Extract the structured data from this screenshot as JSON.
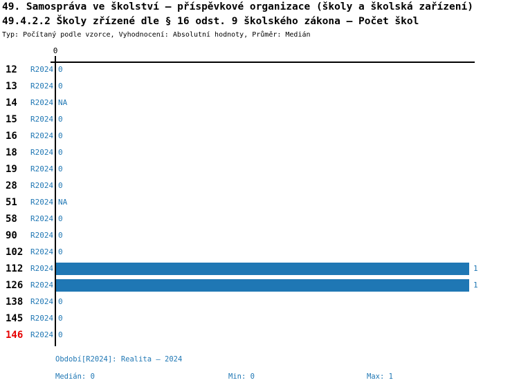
{
  "title": {
    "line1": "49. Samospráva ve školství – příspěvkové organizace (školy a školská zařízení)",
    "line2": "49.4.2.2 Školy zřízené dle § 16 odst. 9 školského zákona – Počet škol",
    "line3": "Typ: Počítaný podle vzorce, Vyhodnocení: Absolutní hodnoty, Průměr: Medián"
  },
  "axis": {
    "tick_label": "0"
  },
  "chart_data": {
    "type": "bar",
    "orientation": "horizontal",
    "categories": [
      "12",
      "13",
      "14",
      "15",
      "16",
      "18",
      "19",
      "28",
      "51",
      "58",
      "90",
      "102",
      "112",
      "126",
      "138",
      "145",
      "146"
    ],
    "series": [
      {
        "name": "R2024",
        "values": [
          0,
          0,
          null,
          0,
          0,
          0,
          0,
          0,
          null,
          0,
          0,
          0,
          1,
          1,
          0,
          0,
          0
        ]
      }
    ],
    "value_labels": [
      "0",
      "0",
      "NA",
      "0",
      "0",
      "0",
      "0",
      "0",
      "NA",
      "0",
      "0",
      "0",
      "1",
      "1",
      "0",
      "0",
      "0"
    ],
    "highlighted_category": "146",
    "xlim": [
      0,
      1
    ],
    "xticks": [
      0
    ],
    "grid": false,
    "legend_position": "none",
    "bar_color": "#1f77b4",
    "label_color": "#1f77b4",
    "highlight_color": "#e60000",
    "median": 0,
    "min": 0,
    "max": 1
  },
  "footer": {
    "period": "Období[R2024]: Realita – 2024",
    "median": "Medián: 0",
    "min": "Min: 0",
    "max": "Max: 1"
  },
  "colors": {
    "axis": "#000000",
    "title": "#000000",
    "blue": "#1f77b4",
    "highlight_red": "#e60000",
    "background": "#ffffff"
  }
}
